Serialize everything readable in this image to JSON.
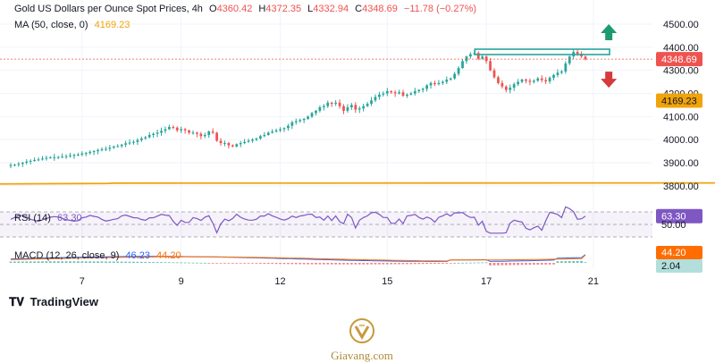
{
  "header": {
    "symbol": "Gold US Dollars per Ounce Spot Prices, 4h",
    "open_label": "O",
    "open": "4360.42",
    "high_label": "H",
    "high": "4372.35",
    "low_label": "L",
    "low": "4332.94",
    "close_label": "C",
    "close": "4348.69",
    "change": "−11.78 (−0.27%)",
    "ma_label": "MA (50, close, 0)",
    "ma_value": "4169.23"
  },
  "rsi": {
    "label": "RSI (14)",
    "value": "63.30",
    "mid_label": "50.00"
  },
  "macd": {
    "label": "MACD (12, 26, close, 9)",
    "macd_value": "46.23",
    "signal_value": "44.20",
    "hist_value": "2.04"
  },
  "branding": {
    "tradingview": "TradingView",
    "site": "Giavang.com"
  },
  "colors": {
    "up": "#26a69a",
    "down": "#ef5350",
    "ma": "#f0a30a",
    "rsi": "#7e57c2",
    "macd": "#2962ff",
    "signal": "#ff6d00",
    "resistance": "#26a69a"
  },
  "chart_data": {
    "type": "line",
    "price_axis": {
      "ticks": [
        3800,
        3900,
        4000,
        4100,
        4200,
        4300,
        4400,
        4500
      ],
      "tick_labels": [
        "3800.00",
        "3900.00",
        "4000.00",
        "4100.00",
        "4200.00",
        "4300.00",
        "4400.00",
        "4500.00"
      ],
      "ylim": [
        3745,
        4535
      ]
    },
    "x_ticks": [
      {
        "label": "7",
        "index": 18
      },
      {
        "label": "9",
        "index": 43
      },
      {
        "label": "12",
        "index": 68
      },
      {
        "label": "15",
        "index": 95
      },
      {
        "label": "17",
        "index": 120
      },
      {
        "label": "21",
        "index": 147
      }
    ],
    "closes": [
      3890,
      3891,
      3895,
      3900,
      3905,
      3908,
      3912,
      3914,
      3918,
      3921,
      3923,
      3924,
      3925,
      3926,
      3928,
      3932,
      3934,
      3935,
      3940,
      3942,
      3947,
      3950,
      3955,
      3958,
      3960,
      3965,
      3970,
      3972,
      3978,
      3984,
      3987,
      3990,
      3998,
      4005,
      4010,
      4020,
      4025,
      4030,
      4038,
      4045,
      4055,
      4052,
      4040,
      4045,
      4040,
      4030,
      4030,
      4025,
      4015,
      4020,
      4035,
      4030,
      3995,
      3985,
      3985,
      3975,
      3970,
      3980,
      3985,
      3990,
      3995,
      4000,
      4005,
      4015,
      4020,
      4030,
      4035,
      4040,
      4045,
      4050,
      4060,
      4075,
      4080,
      4085,
      4090,
      4100,
      4115,
      4125,
      4140,
      4145,
      4160,
      4155,
      4160,
      4145,
      4125,
      4140,
      4150,
      4130,
      4135,
      4145,
      4155,
      4170,
      4185,
      4195,
      4200,
      4210,
      4205,
      4200,
      4205,
      4190,
      4195,
      4200,
      4210,
      4215,
      4220,
      4235,
      4245,
      4240,
      4245,
      4250,
      4260,
      4265,
      4285,
      4310,
      4340,
      4360,
      4370,
      4375,
      4350,
      4360,
      4340,
      4300,
      4270,
      4245,
      4230,
      4215,
      4225,
      4240,
      4250,
      4260,
      4255,
      4250,
      4255,
      4265,
      4258,
      4252,
      4268,
      4280,
      4290,
      4295,
      4330,
      4360,
      4380,
      4372,
      4360,
      4348
    ],
    "series": [
      {
        "name": "MA (50, close, 0)",
        "last": 4169.23
      }
    ],
    "resistance": 4380,
    "last_price": 4348.69,
    "rsi": {
      "levels": [
        30,
        50,
        70
      ],
      "last": 63.3
    },
    "macd": {
      "macd_last": 46.23,
      "signal_last": 44.2,
      "hist_last": 2.04
    }
  }
}
